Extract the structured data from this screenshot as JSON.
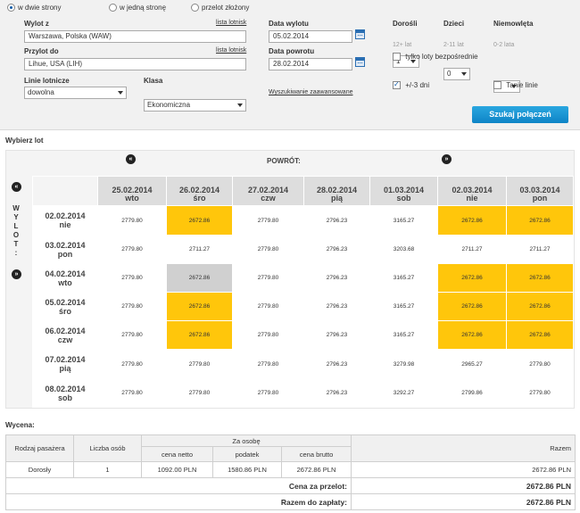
{
  "search": {
    "trip_types": [
      {
        "label": "w dwie strony",
        "selected": true
      },
      {
        "label": "w jedną stronę",
        "selected": false
      },
      {
        "label": "przelot złożony",
        "selected": false
      }
    ],
    "from_label": "Wylot z",
    "from_value": "Warszawa, Polska (WAW)",
    "to_label": "Przylot do",
    "to_value": "Lihue, USA (LIH)",
    "airports_link": "lista lotnisk",
    "depart_label": "Data wylotu",
    "depart_value": "05.02.2014",
    "return_label": "Data powrotu",
    "return_value": "28.02.2014",
    "airlines_label": "Linie lotnicze",
    "airlines_value": "dowolna",
    "class_label": "Klasa",
    "class_value": "Ekonomiczna",
    "advanced_link": "Wyszukiwanie zaawansowane",
    "adults_label": "Dorośli",
    "adults_value": "1",
    "adults_hint": "12+ lat",
    "children_label": "Dzieci",
    "children_value": "0",
    "children_hint": "2-11 lat",
    "infants_label": "Niemowlęta",
    "infants_value": "0",
    "infants_hint": "0-2 lata",
    "direct_only_label": "tylko loty bezpośrednie",
    "flex_days_label": "+/-3 dni",
    "cheap_lines_label": "Tanie linie",
    "search_button": "Szukaj połączeń"
  },
  "matrix": {
    "section_title": "Wybierz lot",
    "return_header": "POWRÓT:",
    "departure_vertical": "WYLOT:",
    "columns": [
      {
        "date": "25.02.2014",
        "day": "wto"
      },
      {
        "date": "26.02.2014",
        "day": "śro"
      },
      {
        "date": "27.02.2014",
        "day": "czw"
      },
      {
        "date": "28.02.2014",
        "day": "pią"
      },
      {
        "date": "01.03.2014",
        "day": "sob"
      },
      {
        "date": "02.03.2014",
        "day": "nie"
      },
      {
        "date": "03.03.2014",
        "day": "pon"
      }
    ],
    "rows": [
      {
        "date": "02.02.2014",
        "day": "nie",
        "prices": [
          "2779.80",
          "2672.86",
          "2779.80",
          "2796.23",
          "3165.27",
          "2672.86",
          "2672.86"
        ]
      },
      {
        "date": "03.02.2014",
        "day": "pon",
        "prices": [
          "2779.80",
          "2711.27",
          "2779.80",
          "2796.23",
          "3203.68",
          "2711.27",
          "2711.27"
        ]
      },
      {
        "date": "04.02.2014",
        "day": "wto",
        "prices": [
          "2779.80",
          "2672.86",
          "2779.80",
          "2796.23",
          "3165.27",
          "2672.86",
          "2672.86"
        ]
      },
      {
        "date": "05.02.2014",
        "day": "śro",
        "prices": [
          "2779.80",
          "2672.86",
          "2779.80",
          "2796.23",
          "3165.27",
          "2672.86",
          "2672.86"
        ]
      },
      {
        "date": "06.02.2014",
        "day": "czw",
        "prices": [
          "2779.80",
          "2672.86",
          "2779.80",
          "2796.23",
          "3165.27",
          "2672.86",
          "2672.86"
        ]
      },
      {
        "date": "07.02.2014",
        "day": "pią",
        "prices": [
          "2779.80",
          "2779.80",
          "2779.80",
          "2796.23",
          "3279.98",
          "2965.27",
          "2779.80"
        ]
      },
      {
        "date": "08.02.2014",
        "day": "sob",
        "prices": [
          "2779.80",
          "2779.80",
          "2779.80",
          "2796.23",
          "3292.27",
          "2799.86",
          "2779.80"
        ]
      }
    ],
    "highlight_color": "#ffc60b",
    "selected_color": "#d0d0d0"
  },
  "pricing": {
    "section_title": "Wycena:",
    "col_passenger": "Rodzaj pasażera",
    "col_count": "Liczba osób",
    "col_per_person": "Za osobę",
    "col_net": "cena netto",
    "col_tax": "podatek",
    "col_gross": "cena brutto",
    "col_total": "Razem",
    "row": {
      "type": "Dorosły",
      "count": "1",
      "net": "1092.00 PLN",
      "tax": "1580.86 PLN",
      "gross": "2672.86 PLN",
      "total": "2672.86 PLN"
    },
    "flight_price_label": "Cena za przelot:",
    "flight_price_value": "2672.86 PLN",
    "to_pay_label": "Razem do zapłaty:",
    "to_pay_value": "2672.86 PLN"
  }
}
